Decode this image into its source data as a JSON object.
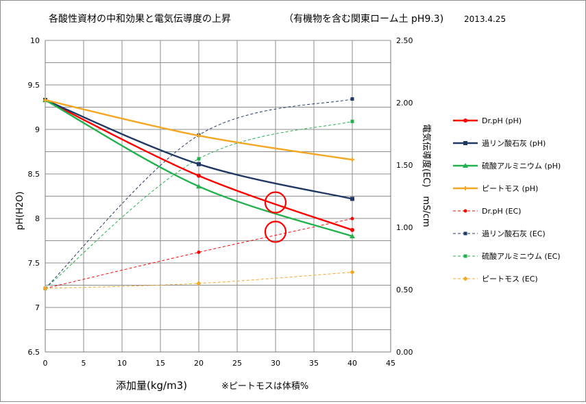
{
  "chart_data": {
    "type": "line",
    "title": "各酸性資材の中和効果と電気伝導度の上昇",
    "subtitle": "（有機物を含む関東ローム土 pH9.3)",
    "date": "2013.4.25",
    "xlabel": "添加量(kg/m3)",
    "xnote": "※ピートモスは体積%",
    "ylabel_left": "pH(H2O)",
    "ylabel_right": "電気伝導度(EC)　mS/cm",
    "xlim": [
      0,
      45
    ],
    "ylim_left": [
      6.5,
      10
    ],
    "ylim_right": [
      0.0,
      2.5
    ],
    "xticks": [
      "0",
      "5",
      "10",
      "15",
      "20",
      "25",
      "30",
      "35",
      "40",
      "45"
    ],
    "yticks_left": [
      "6.5",
      "7",
      "7.5",
      "8",
      "8.5",
      "9",
      "9.5",
      "10"
    ],
    "yticks_right": [
      "0.00",
      "0.50",
      "1.00",
      "1.50",
      "2.00",
      "2.50"
    ],
    "grid": true,
    "legend_position": "right",
    "x": [
      0,
      20,
      40
    ],
    "series": [
      {
        "name": "Dr.pH (pH)",
        "axis": "left",
        "style": "solid",
        "marker": "circle",
        "color": "#ff0000",
        "values": [
          9.33,
          8.48,
          7.87
        ]
      },
      {
        "name": "過リン酸石灰 (pH)",
        "axis": "left",
        "style": "solid",
        "marker": "square",
        "color": "#1f3864",
        "values": [
          9.33,
          8.61,
          8.22
        ]
      },
      {
        "name": "硫酸アルミニウム (pH)",
        "axis": "left",
        "style": "solid",
        "marker": "triangle",
        "color": "#22b14c",
        "values": [
          9.33,
          8.36,
          7.8
        ]
      },
      {
        "name": "ピートモス (pH)",
        "axis": "left",
        "style": "solid",
        "marker": "cross",
        "color": "#f5a623",
        "values": [
          9.33,
          8.93,
          8.66
        ]
      },
      {
        "name": "Dr.pH (EC)",
        "axis": "right",
        "style": "dashed",
        "marker": "circle",
        "color": "#ff0000",
        "values": [
          0.51,
          0.8,
          1.07
        ]
      },
      {
        "name": "過リン酸石灰 (EC)",
        "axis": "right",
        "style": "dashed",
        "marker": "square",
        "color": "#1f3864",
        "values": [
          0.51,
          1.74,
          2.03
        ]
      },
      {
        "name": "硫酸アルミニウム (EC)",
        "axis": "right",
        "style": "dashed",
        "marker": "square",
        "color": "#22b14c",
        "values": [
          0.51,
          1.55,
          1.85
        ]
      },
      {
        "name": "ピートモス (EC)",
        "axis": "right",
        "style": "dashed",
        "marker": "diamond",
        "color": "#f5a623",
        "values": [
          0.51,
          0.55,
          0.64
        ]
      }
    ],
    "annotations": [
      {
        "shape": "circle",
        "color": "#ff0000",
        "x": 30,
        "axis": "left",
        "y": 8.18
      },
      {
        "shape": "circle",
        "color": "#ff0000",
        "x": 30,
        "axis": "left",
        "y": 7.85
      }
    ]
  }
}
